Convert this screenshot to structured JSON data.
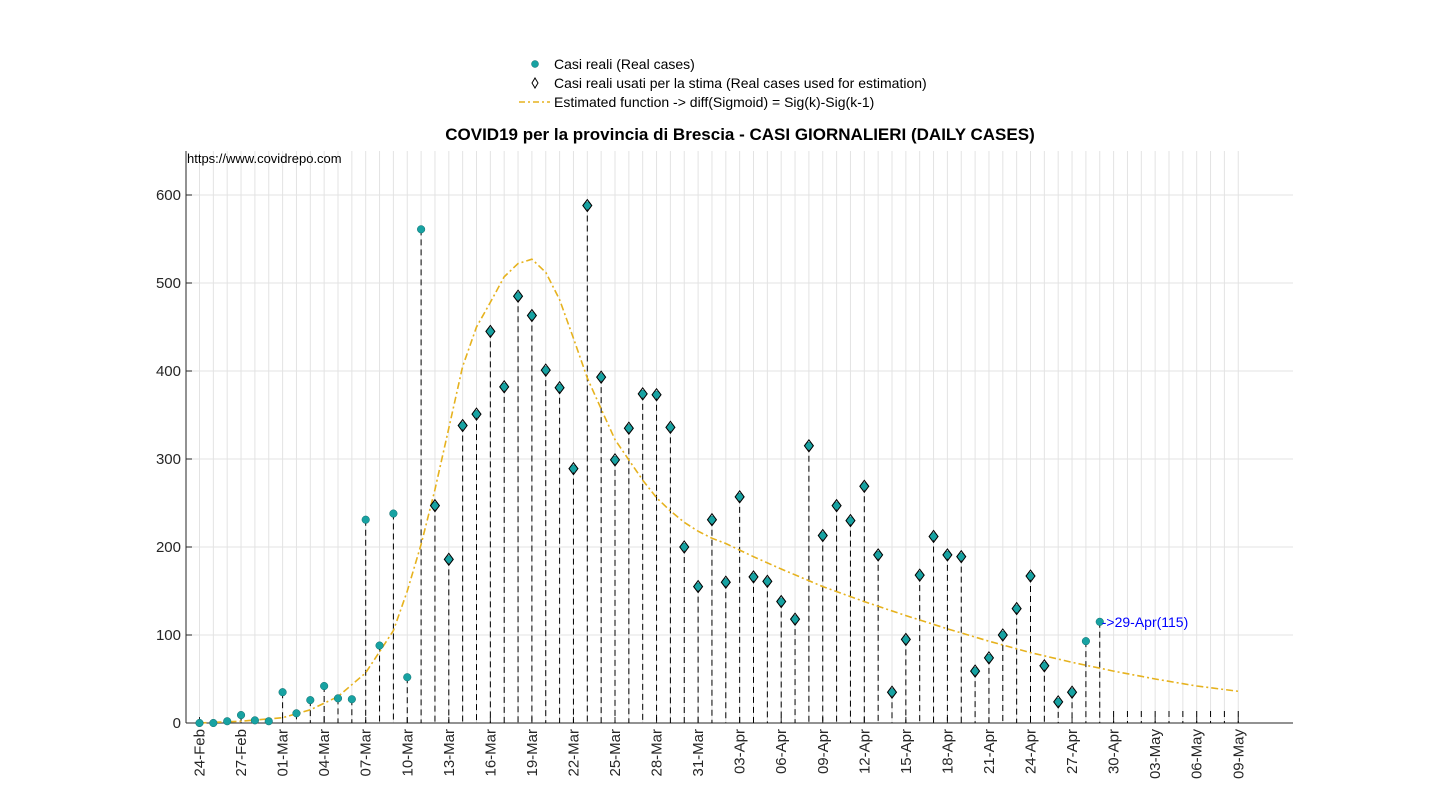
{
  "chart_data": {
    "type": "scatter",
    "title": "COVID19 per la provincia di Brescia - CASI GIORNALIERI (DAILY CASES)",
    "source_note": "https://www.covidrepo.com",
    "xlabel": "",
    "ylabel": "",
    "ylim": [
      0,
      650
    ],
    "yticks": [
      0,
      100,
      200,
      300,
      400,
      500,
      600
    ],
    "x_start": "24-Feb",
    "x_count": 76,
    "xticks": [
      {
        "i": 0,
        "label": "24-Feb"
      },
      {
        "i": 3,
        "label": "27-Feb"
      },
      {
        "i": 6,
        "label": "01-Mar"
      },
      {
        "i": 9,
        "label": "04-Mar"
      },
      {
        "i": 12,
        "label": "07-Mar"
      },
      {
        "i": 15,
        "label": "10-Mar"
      },
      {
        "i": 18,
        "label": "13-Mar"
      },
      {
        "i": 21,
        "label": "16-Mar"
      },
      {
        "i": 24,
        "label": "19-Mar"
      },
      {
        "i": 27,
        "label": "22-Mar"
      },
      {
        "i": 30,
        "label": "25-Mar"
      },
      {
        "i": 33,
        "label": "28-Mar"
      },
      {
        "i": 36,
        "label": "31-Mar"
      },
      {
        "i": 39,
        "label": "03-Apr"
      },
      {
        "i": 42,
        "label": "06-Apr"
      },
      {
        "i": 45,
        "label": "09-Apr"
      },
      {
        "i": 48,
        "label": "12-Apr"
      },
      {
        "i": 51,
        "label": "15-Apr"
      },
      {
        "i": 54,
        "label": "18-Apr"
      },
      {
        "i": 57,
        "label": "21-Apr"
      },
      {
        "i": 60,
        "label": "24-Apr"
      },
      {
        "i": 63,
        "label": "27-Apr"
      },
      {
        "i": 66,
        "label": "30-Apr"
      },
      {
        "i": 69,
        "label": "03-May"
      },
      {
        "i": 72,
        "label": "06-May"
      },
      {
        "i": 75,
        "label": "09-May"
      }
    ],
    "grid": true,
    "legend_position": "top-center",
    "series": [
      {
        "name": "Casi reali (Real cases)",
        "color": "#17a2a2",
        "values": [
          0,
          0,
          2,
          9,
          3,
          2,
          35,
          11,
          26,
          42,
          28,
          27,
          231,
          88,
          238,
          52,
          561,
          247,
          186,
          338,
          351,
          445,
          382,
          485,
          463,
          401,
          381,
          289,
          588,
          393,
          299,
          335,
          374,
          373,
          336,
          200,
          155,
          231,
          160,
          257,
          166,
          161,
          138,
          118,
          315,
          213,
          247,
          230,
          269,
          191,
          35,
          95,
          168,
          212,
          191,
          189,
          59,
          74,
          100,
          130,
          167,
          65,
          24,
          35,
          93,
          115
        ]
      },
      {
        "name": "Casi reali usati per la stima (Real cases used for estimation)",
        "from_index": 17
      },
      {
        "name": "Estimated function -> diff(Sigmoid) = Sig(k)-Sig(k-1)",
        "color": "#e6b21e",
        "x": [
          0,
          3,
          6,
          8,
          10,
          12,
          14,
          15,
          16,
          17,
          18,
          19,
          20,
          21,
          22,
          23,
          24,
          25,
          26,
          27,
          28,
          29,
          30,
          31,
          32,
          33,
          34,
          35,
          36,
          37,
          38,
          40,
          42,
          45,
          48,
          51,
          54,
          57,
          60,
          63,
          66,
          69,
          72,
          75
        ],
        "values": [
          0,
          2,
          6,
          15,
          30,
          57,
          105,
          150,
          203,
          265,
          335,
          405,
          450,
          478,
          507,
          522,
          527,
          512,
          481,
          437,
          392,
          357,
          322,
          299,
          276,
          256,
          241,
          228,
          218,
          210,
          204,
          189,
          175,
          155,
          138,
          122,
          107,
          93,
          80,
          69,
          59,
          50,
          42,
          36
        ]
      }
    ],
    "annotation": {
      "index": 65,
      "text": "->29-Apr(115)",
      "color": "#0000ff"
    }
  }
}
